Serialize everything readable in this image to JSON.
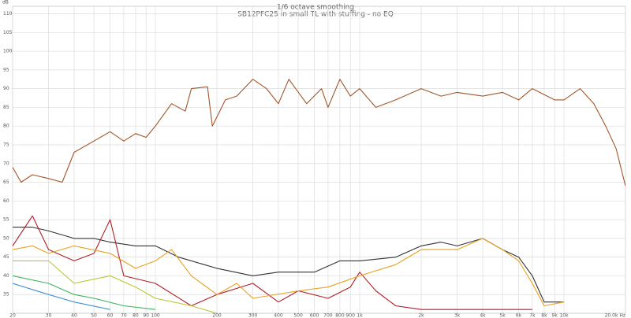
{
  "chart_data": {
    "type": "line",
    "title": "1/6 octave smoothing",
    "subtitle": "SB12PFC25 in small TL with stuffing - no EQ",
    "y_label": "dB",
    "log_x": true,
    "grid": true,
    "xlim": [
      20,
      20000
    ],
    "ylim": [
      30,
      112
    ],
    "yticks": [
      35,
      40,
      45,
      50,
      55,
      60,
      65,
      70,
      75,
      80,
      85,
      90,
      95,
      100,
      105,
      110
    ],
    "xticks": [
      20,
      30,
      40,
      50,
      60,
      70,
      80,
      90,
      100,
      200,
      300,
      400,
      500,
      600,
      700,
      800,
      900,
      {
        "value": 1000,
        "label": "1k"
      },
      {
        "value": 2000,
        "label": "2k"
      },
      {
        "value": 3000,
        "label": "3k"
      },
      {
        "value": 4000,
        "label": "4k"
      },
      {
        "value": 5000,
        "label": "5k"
      },
      {
        "value": 6000,
        "label": "6k"
      },
      {
        "value": 7000,
        "label": "7k"
      },
      {
        "value": 8000,
        "label": "8k"
      },
      {
        "value": 9000,
        "label": "9k"
      },
      {
        "value": 10000,
        "label": "10k"
      },
      {
        "value": 20000,
        "label": "20.0k Hz"
      }
    ],
    "series": [
      {
        "color": "#a0562a",
        "x": [
          20,
          22,
          25,
          30,
          35,
          40,
          50,
          60,
          70,
          80,
          90,
          100,
          120,
          140,
          150,
          180,
          190,
          220,
          250,
          300,
          350,
          400,
          450,
          550,
          650,
          700,
          800,
          900,
          1000,
          1200,
          1500,
          2000,
          2500,
          3000,
          4000,
          5000,
          6000,
          7000,
          9000,
          10000,
          12000,
          14000,
          16000,
          18000,
          20000
        ],
        "values": [
          69,
          65,
          67,
          66,
          65,
          73,
          76,
          78.5,
          76,
          78,
          77,
          80,
          86,
          84,
          90,
          90.5,
          80,
          87,
          88,
          92.5,
          90,
          86,
          92.5,
          86,
          90,
          85,
          92.5,
          88,
          90,
          85,
          87,
          90,
          88,
          89,
          88,
          89,
          87,
          90,
          87,
          87,
          90,
          86,
          80,
          74,
          64
        ]
      },
      {
        "color": "#333333",
        "x": [
          20,
          25,
          30,
          40,
          50,
          60,
          80,
          100,
          130,
          200,
          300,
          400,
          600,
          800,
          1000,
          1500,
          2000,
          2500,
          3000,
          4000,
          5000,
          6000,
          7000,
          8000,
          10000
        ],
        "values": [
          53,
          53,
          52,
          50,
          50,
          49,
          48,
          48,
          45,
          42,
          40,
          41,
          41,
          44,
          44,
          45,
          48,
          49,
          48,
          50,
          47,
          45,
          40,
          33,
          33
        ]
      },
      {
        "color": "#b0202a",
        "x": [
          20,
          25,
          30,
          40,
          50,
          60,
          70,
          100,
          150,
          200,
          300,
          400,
          500,
          700,
          900,
          1000,
          1200,
          1500,
          2000,
          3000,
          5000,
          7000
        ],
        "values": [
          48,
          56,
          47,
          44,
          46,
          55,
          40,
          38,
          32,
          35,
          38,
          33,
          36,
          34,
          37,
          41,
          36,
          32,
          31,
          31,
          31,
          31
        ]
      },
      {
        "color": "#e8a020",
        "x": [
          20,
          25,
          30,
          40,
          60,
          80,
          100,
          120,
          150,
          200,
          250,
          300,
          500,
          700,
          1000,
          1500,
          2000,
          3000,
          4000,
          5000,
          6000,
          7000,
          8000,
          10000
        ],
        "values": [
          47,
          48,
          46,
          48,
          46,
          42,
          44,
          47,
          40,
          35,
          38,
          34,
          36,
          37,
          40,
          43,
          47,
          47,
          50,
          47,
          44,
          38,
          32,
          33
        ]
      },
      {
        "color": "#b8c830",
        "x": [
          20,
          30,
          40,
          60,
          80,
          100,
          150,
          200
        ],
        "values": [
          44,
          44,
          38,
          40,
          37,
          34,
          32,
          30
        ]
      },
      {
        "color": "#40b060",
        "x": [
          20,
          30,
          40,
          50,
          70,
          100
        ],
        "values": [
          40,
          38,
          35,
          34,
          32,
          31
        ]
      },
      {
        "color": "#4090d0",
        "x": [
          20,
          30,
          40,
          60
        ],
        "values": [
          38,
          35,
          33,
          31
        ]
      }
    ]
  }
}
